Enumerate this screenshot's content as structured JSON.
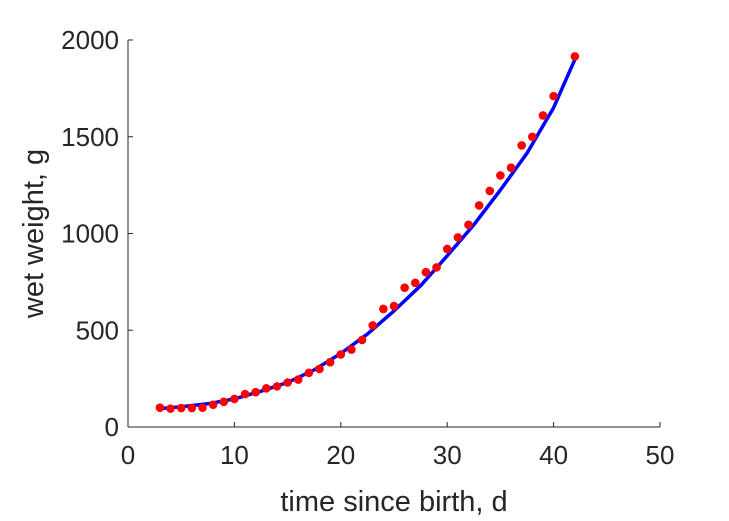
{
  "chart_data": {
    "type": "scatter",
    "xlabel": "time since birth, d",
    "ylabel": "wet weight, g",
    "xlim": [
      0,
      50
    ],
    "ylim": [
      0,
      2000
    ],
    "xticks": [
      "0",
      "10",
      "20",
      "30",
      "40",
      "50"
    ],
    "yticks": [
      "0",
      "500",
      "1000",
      "1500",
      "2000"
    ],
    "grid": false,
    "legend": "none",
    "series": [
      {
        "kind": "points",
        "color": "#ff0000",
        "x": [
          3,
          4,
          5,
          6,
          7,
          8,
          9,
          10,
          11,
          12,
          13,
          14,
          15,
          16,
          17,
          18,
          19,
          20,
          21,
          22,
          23,
          24,
          25,
          26,
          27,
          28,
          29,
          30,
          31,
          32,
          33,
          34,
          35,
          36,
          37,
          38,
          39,
          40,
          42
        ],
        "y": [
          100,
          95,
          98,
          98,
          100,
          115,
          130,
          145,
          170,
          180,
          200,
          210,
          230,
          245,
          280,
          300,
          335,
          375,
          400,
          450,
          525,
          610,
          625,
          720,
          745,
          800,
          825,
          920,
          980,
          1045,
          1145,
          1220,
          1300,
          1340,
          1455,
          1500,
          1610,
          1710,
          1915
        ]
      },
      {
        "kind": "line",
        "color": "#0000ff",
        "x": [
          3,
          5,
          7.5,
          10,
          12.5,
          15,
          17.5,
          20,
          22.5,
          25,
          27.5,
          30,
          32.5,
          35,
          37.5,
          40,
          42
        ],
        "y": [
          95,
          105,
          120,
          145,
          185,
          230,
          295,
          380,
          480,
          600,
          730,
          885,
          1045,
          1225,
          1415,
          1650,
          1900
        ]
      }
    ]
  }
}
